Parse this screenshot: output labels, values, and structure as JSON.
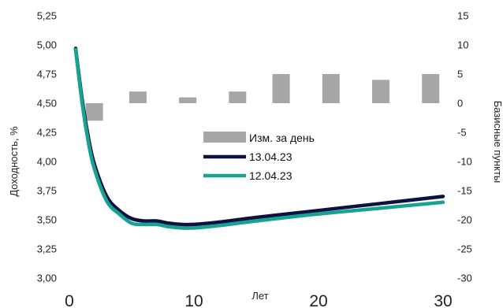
{
  "chart_data": {
    "type": "line+bar",
    "ylabel_left": "Доходность, %",
    "ylabel_right": "Базисные пункты",
    "xlabel": "Лет",
    "x_ticks": [
      "0",
      "10",
      "20",
      "30"
    ],
    "xlim": [
      0,
      30
    ],
    "y_left_ticks": [
      "3,00",
      "3,25",
      "3,50",
      "3,75",
      "4,00",
      "4,25",
      "4,50",
      "4,75",
      "5,00",
      "5,25"
    ],
    "ylim_left": [
      3.0,
      5.25
    ],
    "y_right_ticks": [
      "-30",
      "-25",
      "-20",
      "-15",
      "-10",
      "-5",
      "0",
      "5",
      "10",
      "15"
    ],
    "ylim_right": [
      -30,
      15
    ],
    "grid": false,
    "legend_position": "center",
    "series": [
      {
        "name": "13.04.23",
        "kind": "line",
        "color": "#0d1142",
        "x": [
          0.5,
          1,
          1.5,
          2,
          3,
          4,
          5,
          6,
          7,
          8,
          9,
          10,
          12,
          15,
          20,
          25,
          30
        ],
        "values": [
          4.97,
          4.55,
          4.22,
          3.98,
          3.7,
          3.58,
          3.51,
          3.49,
          3.49,
          3.47,
          3.46,
          3.46,
          3.48,
          3.52,
          3.58,
          3.64,
          3.7
        ]
      },
      {
        "name": "12.04.23",
        "kind": "line",
        "color": "#17a392",
        "x": [
          0.5,
          1,
          1.5,
          2,
          3,
          4,
          5,
          6,
          7,
          8,
          9,
          10,
          12,
          15,
          20,
          25,
          30
        ],
        "values": [
          4.96,
          4.52,
          4.18,
          3.94,
          3.66,
          3.55,
          3.47,
          3.46,
          3.46,
          3.44,
          3.43,
          3.43,
          3.45,
          3.49,
          3.55,
          3.6,
          3.65
        ]
      },
      {
        "name": "Изм. за день",
        "kind": "bar",
        "color": "#a6a6a6",
        "x": [
          2,
          5.5,
          9.5,
          13.5,
          17,
          21,
          25,
          29
        ],
        "values": [
          -3,
          2,
          1,
          2,
          5,
          5,
          4,
          5
        ]
      }
    ]
  }
}
